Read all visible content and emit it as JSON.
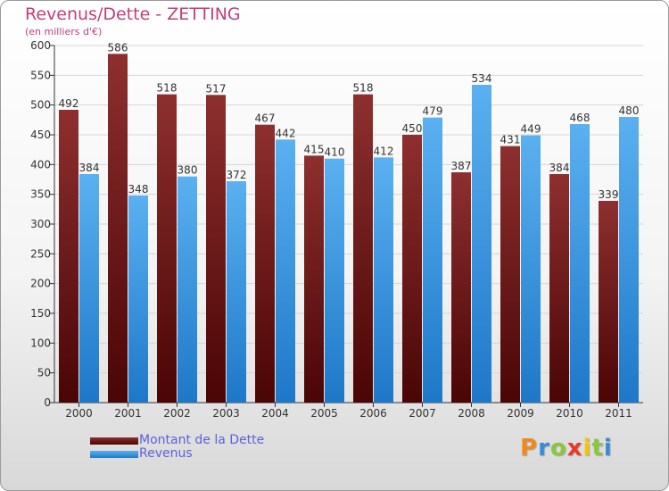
{
  "title": "Revenus/Dette - ZETTING",
  "subtitle": "(en milliers d'€)",
  "logo": {
    "letters": [
      "P",
      "r",
      "o",
      "x",
      "i",
      "t",
      "i"
    ],
    "colors": [
      "#f08a1c",
      "#3a8ad8",
      "#8cc63f",
      "#e83b2e",
      "#f5c400",
      "#8cc63f",
      "#3a8ad8"
    ]
  },
  "colors": {
    "dette": "#7a1f1f",
    "revenus": "#3e9ee8",
    "title": "#c0407a",
    "legend_text": "#5b63d8"
  },
  "chart_data": {
    "type": "bar",
    "title": "Revenus/Dette - ZETTING",
    "subtitle": "(en milliers d'€)",
    "categories": [
      "2000",
      "2001",
      "2002",
      "2003",
      "2004",
      "2005",
      "2006",
      "2007",
      "2008",
      "2009",
      "2010",
      "2011"
    ],
    "series": [
      {
        "name": "Montant de la Dette",
        "values": [
          492,
          586,
          518,
          517,
          467,
          415,
          518,
          450,
          387,
          431,
          384,
          339
        ]
      },
      {
        "name": "Revenus",
        "values": [
          384,
          348,
          380,
          372,
          442,
          410,
          412,
          479,
          534,
          449,
          468,
          480
        ]
      }
    ],
    "ylim": [
      0,
      600
    ],
    "yticks": [
      0,
      50,
      100,
      150,
      200,
      250,
      300,
      350,
      400,
      450,
      500,
      550,
      600
    ],
    "grid": true,
    "legend": "bottom-left"
  }
}
